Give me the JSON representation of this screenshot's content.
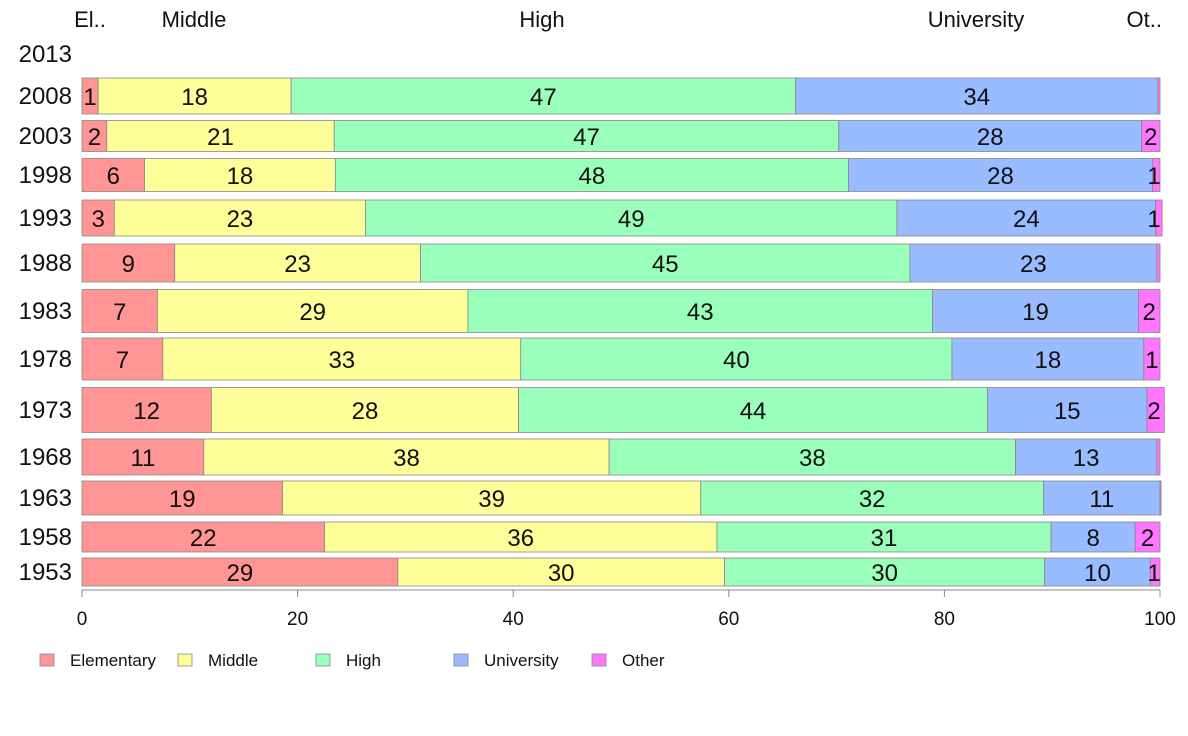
{
  "chart_data": {
    "type": "bar",
    "orientation": "horizontal",
    "stacked": true,
    "top_labels": [
      "El..",
      "Middle",
      "High",
      "University",
      "Ot.."
    ],
    "categories": [
      "2013",
      "2008",
      "2003",
      "1998",
      "1993",
      "1988",
      "1983",
      "1978",
      "1973",
      "1968",
      "1963",
      "1958",
      "1953"
    ],
    "series": [
      {
        "name": "Elementary",
        "color": "#ff9595",
        "values": [
          null,
          1.5,
          2.3,
          5.8,
          3.0,
          8.6,
          7.0,
          7.5,
          12.0,
          11.3,
          18.6,
          22.5,
          29.3
        ]
      },
      {
        "name": "Middle",
        "color": "#ffff99",
        "values": [
          null,
          17.9,
          21.1,
          17.7,
          23.3,
          22.8,
          28.8,
          33.2,
          28.5,
          37.6,
          38.8,
          36.4,
          30.3
        ]
      },
      {
        "name": "High",
        "color": "#99ffbb",
        "values": [
          null,
          46.8,
          46.8,
          47.6,
          49.3,
          45.4,
          43.1,
          40.0,
          43.5,
          37.7,
          31.8,
          31.0,
          29.7
        ]
      },
      {
        "name": "University",
        "color": "#99bbff",
        "values": [
          null,
          33.6,
          28.1,
          28.2,
          24.0,
          22.9,
          19.1,
          17.8,
          14.8,
          13.1,
          10.8,
          7.8,
          9.8
        ]
      },
      {
        "name": "Other",
        "color": "#ff77ff",
        "values": [
          null,
          0.2,
          1.7,
          0.7,
          0.6,
          0.3,
          2.0,
          1.5,
          1.6,
          0.3,
          0.1,
          2.3,
          0.9
        ]
      }
    ],
    "data_labels": [
      [],
      [
        "1",
        "18",
        "47",
        "34",
        ""
      ],
      [
        "2",
        "21",
        "47",
        "28",
        "2"
      ],
      [
        "6",
        "18",
        "48",
        "28",
        "1"
      ],
      [
        "3",
        "23",
        "49",
        "24",
        "1"
      ],
      [
        "9",
        "23",
        "45",
        "23",
        ""
      ],
      [
        "7",
        "29",
        "43",
        "19",
        "2"
      ],
      [
        "7",
        "33",
        "40",
        "18",
        "1"
      ],
      [
        "12",
        "28",
        "44",
        "15",
        "2"
      ],
      [
        "11",
        "38",
        "38",
        "13",
        ""
      ],
      [
        "19",
        "39",
        "32",
        "11",
        ""
      ],
      [
        "22",
        "36",
        "31",
        "8",
        "2"
      ],
      [
        "29",
        "30",
        "30",
        "10",
        "1"
      ]
    ],
    "xlim": [
      0,
      100
    ],
    "xticks": [
      "0",
      "20",
      "40",
      "60",
      "80",
      "100"
    ],
    "grid": false,
    "legend_position": "bottom-left",
    "title": "",
    "xlabel": "",
    "ylabel": ""
  }
}
